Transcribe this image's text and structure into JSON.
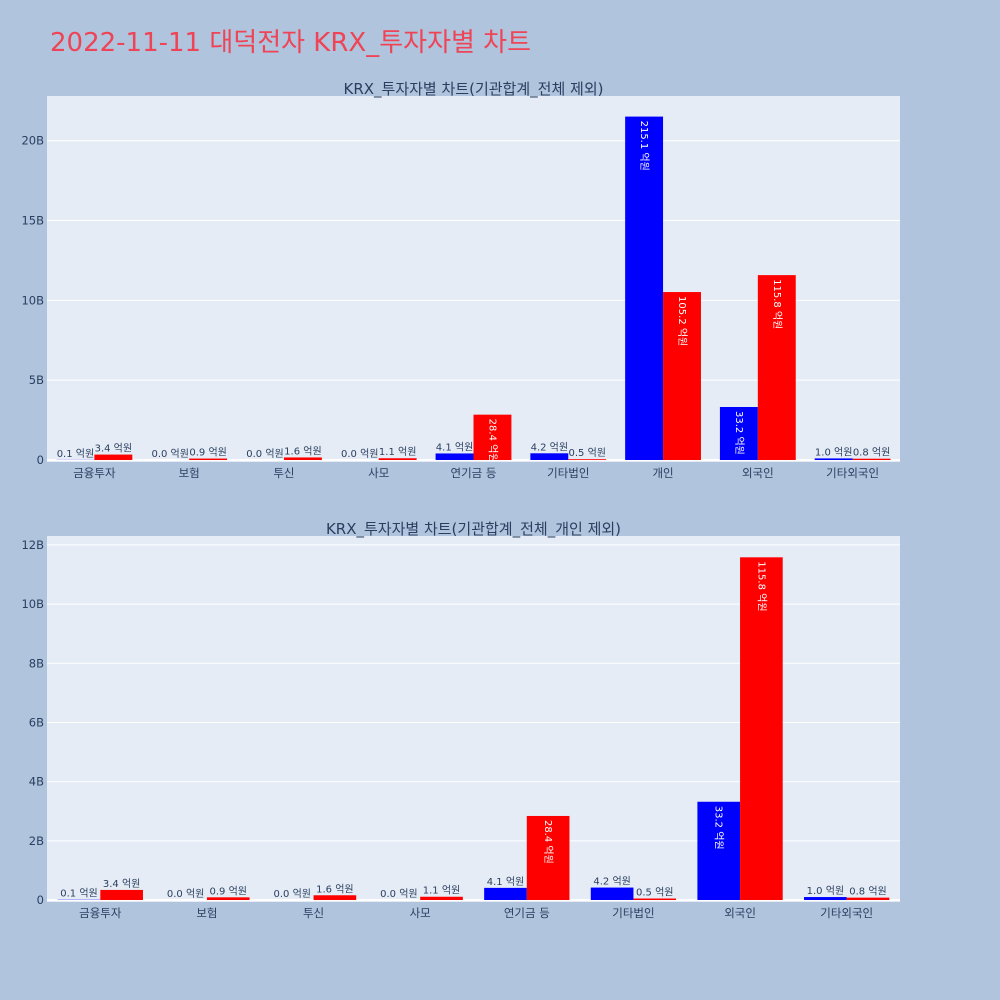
{
  "page": {
    "title": "2022-11-11 대덕전자 KRX_투자자별 차트"
  },
  "colors": {
    "background": "#b0c4de",
    "plot_background": "#e5ecf6",
    "title": "#ee4455",
    "series_blue": "#0000ff",
    "series_red": "#ff0000"
  },
  "chart_data": [
    {
      "type": "bar",
      "title": "KRX_투자자별 차트(기관합계_전체 제외)",
      "categories": [
        "금융투자",
        "보험",
        "투신",
        "사모",
        "연기금 등",
        "기타법인",
        "개인",
        "외국인",
        "기타외국인"
      ],
      "series": [
        {
          "color": "#0000ff",
          "values": [
            10000000,
            0,
            0,
            0,
            410000000,
            420000000,
            21510000000,
            3320000000,
            100000000
          ],
          "labels": [
            "0.1 억원",
            "0.0 억원",
            "0.0 억원",
            "0.0 억원",
            "4.1 억원",
            "4.2 억원",
            "215.1 억원",
            "33.2 억원",
            "1.0 억원"
          ]
        },
        {
          "color": "#ff0000",
          "values": [
            340000000,
            90000000,
            160000000,
            110000000,
            2840000000,
            50000000,
            10520000000,
            11580000000,
            80000000
          ],
          "labels": [
            "3.4 억원",
            "0.9 억원",
            "1.6 억원",
            "1.1 억원",
            "28.4 억원",
            "0.5 억원",
            "105.2 억원",
            "115.8 억원",
            "0.8 억원"
          ]
        }
      ],
      "yticks": [
        0,
        5000000000,
        10000000000,
        15000000000,
        20000000000
      ],
      "ytick_labels": [
        "0",
        "5B",
        "10B",
        "15B",
        "20B"
      ],
      "ylim": [
        0,
        22800000000
      ],
      "grid": true,
      "legend": "none"
    },
    {
      "type": "bar",
      "title": "KRX_투자자별 차트(기관합계_전체_개인 제외)",
      "categories": [
        "금융투자",
        "보험",
        "투신",
        "사모",
        "연기금 등",
        "기타법인",
        "외국인",
        "기타외국인"
      ],
      "series": [
        {
          "color": "#0000ff",
          "values": [
            10000000,
            0,
            0,
            0,
            410000000,
            420000000,
            3320000000,
            100000000
          ],
          "labels": [
            "0.1 억원",
            "0.0 억원",
            "0.0 억원",
            "0.0 억원",
            "4.1 억원",
            "4.2 억원",
            "33.2 억원",
            "1.0 억원"
          ]
        },
        {
          "color": "#ff0000",
          "values": [
            340000000,
            90000000,
            160000000,
            110000000,
            2840000000,
            50000000,
            11580000000,
            80000000
          ],
          "labels": [
            "3.4 억원",
            "0.9 억원",
            "1.6 억원",
            "1.1 억원",
            "28.4 억원",
            "0.5 억원",
            "115.8 억원",
            "0.8 억원"
          ]
        }
      ],
      "yticks": [
        0,
        2000000000,
        4000000000,
        6000000000,
        8000000000,
        10000000000,
        12000000000
      ],
      "ytick_labels": [
        "0",
        "2B",
        "4B",
        "6B",
        "8B",
        "10B",
        "12B"
      ],
      "ylim": [
        0,
        12300000000
      ],
      "grid": true,
      "legend": "none"
    }
  ]
}
